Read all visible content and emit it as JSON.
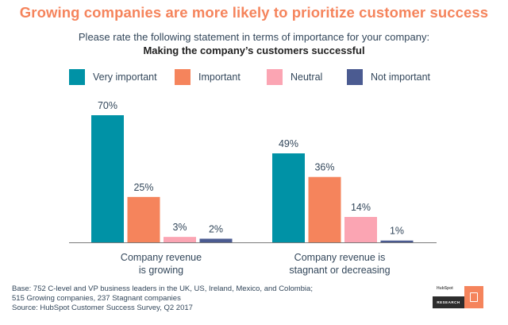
{
  "title": "Growing companies are more likely to prioritize customer success",
  "subtitle": "Please rate the following statement in terms of importance for your company:",
  "subtitle2": "Making the company’s customers successful",
  "legend": [
    {
      "label": "Very important",
      "color": "#0092a6"
    },
    {
      "label": "Important",
      "color": "#f5845c"
    },
    {
      "label": "Neutral",
      "color": "#fba5b3"
    },
    {
      "label": "Not important",
      "color": "#4b5b91"
    }
  ],
  "chart_data": {
    "type": "bar",
    "categories": [
      "Company revenue\nis growing",
      "Company revenue is\nstagnant or decreasing"
    ],
    "series": [
      {
        "name": "Very important",
        "values": [
          70,
          49
        ],
        "labels": [
          "70%",
          "49%"
        ]
      },
      {
        "name": "Important",
        "values": [
          25,
          36
        ],
        "labels": [
          "25%",
          "36%"
        ]
      },
      {
        "name": "Neutral",
        "values": [
          3,
          14
        ],
        "labels": [
          "3%",
          "14%"
        ]
      },
      {
        "name": "Not important",
        "values": [
          2,
          1
        ],
        "labels": [
          "2%",
          "1%"
        ]
      }
    ],
    "ylim": [
      0,
      70
    ],
    "title": "Growing companies are more likely to prioritize customer success",
    "xlabel": "",
    "ylabel": "",
    "grid": false,
    "legend_position": "top"
  },
  "footer": {
    "line1": "Base: 752 C-level and VP business leaders in the UK, US, Ireland, Mexico, and Colombia;",
    "line2": "515 Growing companies, 237 Stagnant companies",
    "line3": "Source: HubSpot Customer Success Survey, Q2 2017"
  },
  "logo": {
    "brand": "HubSpot",
    "tag": "RESEARCH"
  }
}
